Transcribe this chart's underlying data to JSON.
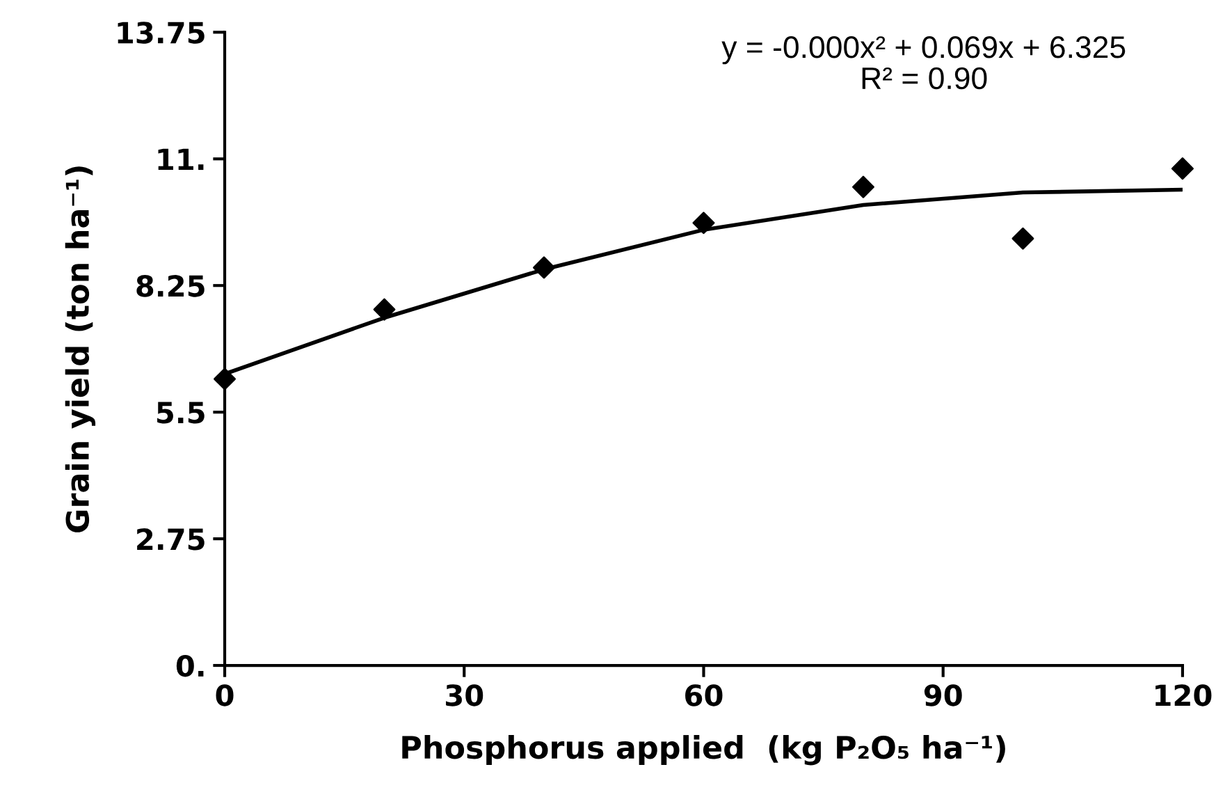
{
  "chart_data": {
    "type": "scatter",
    "xlabel": "Phosphorus applied  (kg P₂O₅ ha⁻¹)",
    "ylabel": "Grain yield (ton ha⁻¹)",
    "annotations": [
      "y = -0.000x² + 0.069x + 6.325\nR² = 0.90"
    ],
    "x": [
      0,
      20,
      40,
      60,
      80,
      100,
      120
    ],
    "series": [
      {
        "color": "#000000",
        "marker": "diamond",
        "values": [
          6.22,
          7.73,
          8.64,
          9.61,
          10.39,
          9.27,
          10.79
        ]
      },
      {
        "type": "line",
        "color": "#000000",
        "marker": "none",
        "line_style": "solid",
        "x": [
          0,
          20,
          40,
          60,
          80,
          100,
          120
        ],
        "values": [
          6.33,
          7.55,
          8.6,
          9.46,
          10.0,
          10.27,
          10.33
        ]
      }
    ],
    "xlim": [
      0,
      120
    ],
    "xticks": [
      0,
      30,
      60,
      90,
      120
    ],
    "ylim": [
      0,
      13.75
    ],
    "yticks": [
      {
        "value": 0,
        "label": "0."
      },
      2.75,
      5.5,
      8.25,
      {
        "value": 11,
        "label": "11."
      },
      13.75
    ],
    "grid": false,
    "legend": false
  }
}
